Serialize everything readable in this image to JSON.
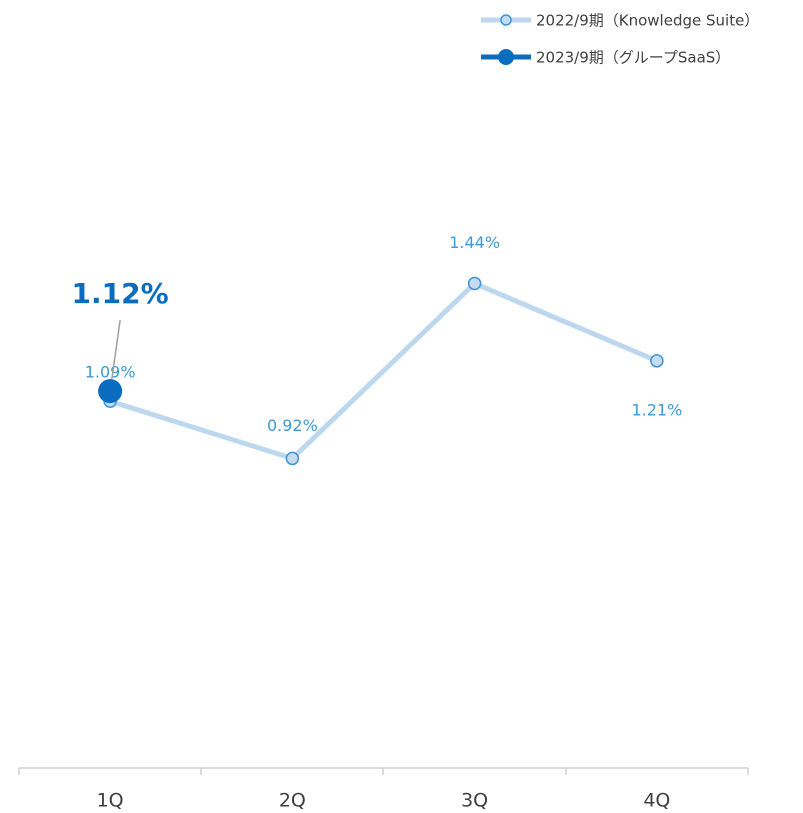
{
  "chart_data": {
    "type": "line",
    "categories": [
      "1Q",
      "2Q",
      "3Q",
      "4Q"
    ],
    "series": [
      {
        "name": "2022/9期（Knowledge Suite）",
        "color": "#bdd7ee",
        "marker_color": "#3c95d6",
        "values": [
          1.09,
          0.92,
          1.44,
          1.21
        ],
        "value_labels": [
          "1.09%",
          "0.92%",
          "1.44%",
          "1.21%"
        ]
      },
      {
        "name": "2023/9期（グループSaaS）",
        "color": "#0a6cbf",
        "values": [
          1.12,
          null,
          null,
          null
        ],
        "value_labels": [
          "1.12%",
          null,
          null,
          null
        ]
      }
    ],
    "ylim": [
      0,
      2
    ],
    "legend": "top-right"
  }
}
